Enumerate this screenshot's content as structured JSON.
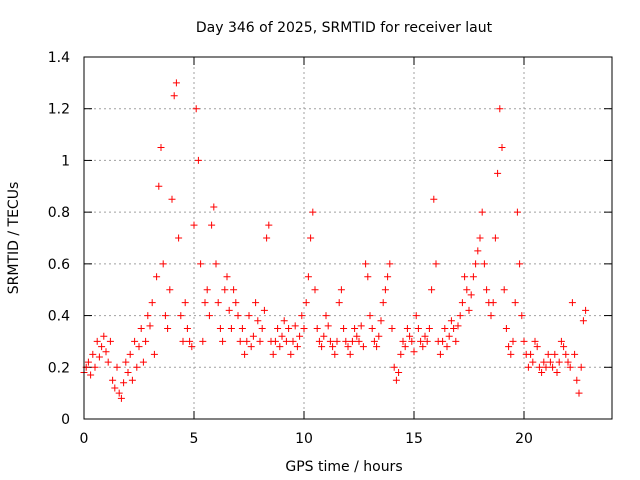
{
  "chart_data": {
    "type": "scatter",
    "title": "Day 346 of 2025, SRMTID for receiver laut",
    "xlabel": "GPS time / hours",
    "ylabel": "SRMTID / TECUs",
    "xlim": [
      0,
      24
    ],
    "ylim": [
      0,
      1.4
    ],
    "xticks": [
      0,
      5,
      10,
      15,
      20
    ],
    "xtick_labels": [
      "0",
      "5",
      "10",
      "15",
      "20"
    ],
    "yticks": [
      0,
      0.2,
      0.4,
      0.6,
      0.8,
      1.0,
      1.2,
      1.4
    ],
    "ytick_labels": [
      "0",
      "0.2",
      "0.4",
      "0.6",
      "0.8",
      "1",
      "1.2",
      "1.4"
    ],
    "grid": true,
    "marker": "+",
    "series": [
      {
        "name": "SRMTID",
        "color": "#ff0000",
        "x": [
          0.0,
          0.1,
          0.2,
          0.3,
          0.4,
          0.5,
          0.6,
          0.7,
          0.8,
          0.9,
          1.0,
          1.1,
          1.2,
          1.3,
          1.4,
          1.5,
          1.6,
          1.7,
          1.8,
          1.9,
          2.0,
          2.1,
          2.2,
          2.3,
          2.4,
          2.5,
          2.6,
          2.7,
          2.8,
          2.9,
          3.0,
          3.1,
          3.2,
          3.3,
          3.4,
          3.5,
          3.6,
          3.7,
          3.8,
          3.9,
          4.0,
          4.1,
          4.2,
          4.3,
          4.4,
          4.5,
          4.6,
          4.7,
          4.8,
          4.9,
          5.0,
          5.1,
          5.2,
          5.3,
          5.4,
          5.5,
          5.6,
          5.7,
          5.8,
          5.9,
          6.0,
          6.1,
          6.2,
          6.3,
          6.4,
          6.5,
          6.6,
          6.7,
          6.8,
          6.9,
          7.0,
          7.1,
          7.2,
          7.3,
          7.4,
          7.5,
          7.6,
          7.7,
          7.8,
          7.9,
          8.0,
          8.1,
          8.2,
          8.3,
          8.4,
          8.5,
          8.6,
          8.7,
          8.8,
          8.9,
          9.0,
          9.1,
          9.2,
          9.3,
          9.4,
          9.5,
          9.6,
          9.7,
          9.8,
          9.9,
          10.0,
          10.1,
          10.2,
          10.3,
          10.4,
          10.5,
          10.6,
          10.7,
          10.8,
          10.9,
          11.0,
          11.1,
          11.2,
          11.3,
          11.4,
          11.5,
          11.6,
          11.7,
          11.8,
          11.9,
          12.0,
          12.1,
          12.2,
          12.3,
          12.4,
          12.5,
          12.6,
          12.7,
          12.8,
          12.9,
          13.0,
          13.1,
          13.2,
          13.3,
          13.4,
          13.5,
          13.6,
          13.7,
          13.8,
          13.9,
          14.0,
          14.1,
          14.2,
          14.3,
          14.4,
          14.5,
          14.6,
          14.7,
          14.8,
          14.9,
          15.0,
          15.1,
          15.2,
          15.3,
          15.4,
          15.5,
          15.6,
          15.7,
          15.8,
          15.9,
          16.0,
          16.1,
          16.2,
          16.3,
          16.4,
          16.5,
          16.6,
          16.7,
          16.8,
          16.9,
          17.0,
          17.1,
          17.2,
          17.3,
          17.4,
          17.5,
          17.6,
          17.7,
          17.8,
          17.9,
          18.0,
          18.1,
          18.2,
          18.3,
          18.4,
          18.5,
          18.6,
          18.7,
          18.8,
          18.9,
          19.0,
          19.1,
          19.2,
          19.3,
          19.4,
          19.5,
          19.6,
          19.7,
          19.8,
          19.9,
          20.0,
          20.1,
          20.2,
          20.3,
          20.4,
          20.5,
          20.6,
          20.7,
          20.8,
          20.9,
          21.0,
          21.1,
          21.2,
          21.3,
          21.4,
          21.5,
          21.6,
          21.7,
          21.8,
          21.9,
          22.0,
          22.1,
          22.2,
          22.3,
          22.4,
          22.5,
          22.6,
          22.7,
          22.8
        ],
        "y": [
          0.18,
          0.2,
          0.22,
          0.17,
          0.25,
          0.2,
          0.3,
          0.24,
          0.28,
          0.32,
          0.26,
          0.22,
          0.3,
          0.15,
          0.12,
          0.2,
          0.1,
          0.08,
          0.14,
          0.22,
          0.18,
          0.25,
          0.15,
          0.3,
          0.2,
          0.28,
          0.35,
          0.22,
          0.3,
          0.4,
          0.36,
          0.45,
          0.25,
          0.55,
          0.9,
          1.05,
          0.6,
          0.4,
          0.35,
          0.5,
          0.85,
          1.25,
          1.3,
          0.7,
          0.4,
          0.3,
          0.45,
          0.35,
          0.3,
          0.28,
          0.75,
          1.2,
          1.0,
          0.6,
          0.3,
          0.45,
          0.5,
          0.4,
          0.75,
          0.82,
          0.6,
          0.45,
          0.35,
          0.3,
          0.5,
          0.55,
          0.42,
          0.35,
          0.5,
          0.45,
          0.4,
          0.3,
          0.35,
          0.25,
          0.3,
          0.4,
          0.28,
          0.32,
          0.45,
          0.38,
          0.3,
          0.35,
          0.42,
          0.7,
          0.75,
          0.3,
          0.25,
          0.3,
          0.35,
          0.28,
          0.32,
          0.38,
          0.3,
          0.35,
          0.25,
          0.3,
          0.36,
          0.28,
          0.32,
          0.4,
          0.35,
          0.45,
          0.55,
          0.7,
          0.8,
          0.5,
          0.35,
          0.3,
          0.28,
          0.32,
          0.4,
          0.36,
          0.3,
          0.28,
          0.25,
          0.3,
          0.45,
          0.5,
          0.35,
          0.3,
          0.28,
          0.25,
          0.3,
          0.35,
          0.32,
          0.3,
          0.36,
          0.28,
          0.6,
          0.55,
          0.4,
          0.35,
          0.3,
          0.28,
          0.32,
          0.38,
          0.45,
          0.5,
          0.55,
          0.6,
          0.35,
          0.2,
          0.15,
          0.18,
          0.25,
          0.3,
          0.28,
          0.35,
          0.32,
          0.3,
          0.26,
          0.4,
          0.35,
          0.3,
          0.28,
          0.32,
          0.3,
          0.35,
          0.5,
          0.85,
          0.6,
          0.3,
          0.25,
          0.3,
          0.35,
          0.28,
          0.32,
          0.38,
          0.35,
          0.3,
          0.36,
          0.4,
          0.45,
          0.55,
          0.5,
          0.42,
          0.48,
          0.55,
          0.6,
          0.65,
          0.7,
          0.8,
          0.6,
          0.5,
          0.45,
          0.4,
          0.45,
          0.7,
          0.95,
          1.2,
          1.05,
          0.5,
          0.35,
          0.28,
          0.25,
          0.3,
          0.45,
          0.8,
          0.6,
          0.4,
          0.3,
          0.25,
          0.2,
          0.25,
          0.22,
          0.3,
          0.28,
          0.2,
          0.18,
          0.22,
          0.2,
          0.25,
          0.22,
          0.2,
          0.25,
          0.18,
          0.22,
          0.3,
          0.28,
          0.25,
          0.22,
          0.2,
          0.45,
          0.25,
          0.15,
          0.1,
          0.2,
          0.38,
          0.42
        ]
      }
    ]
  }
}
